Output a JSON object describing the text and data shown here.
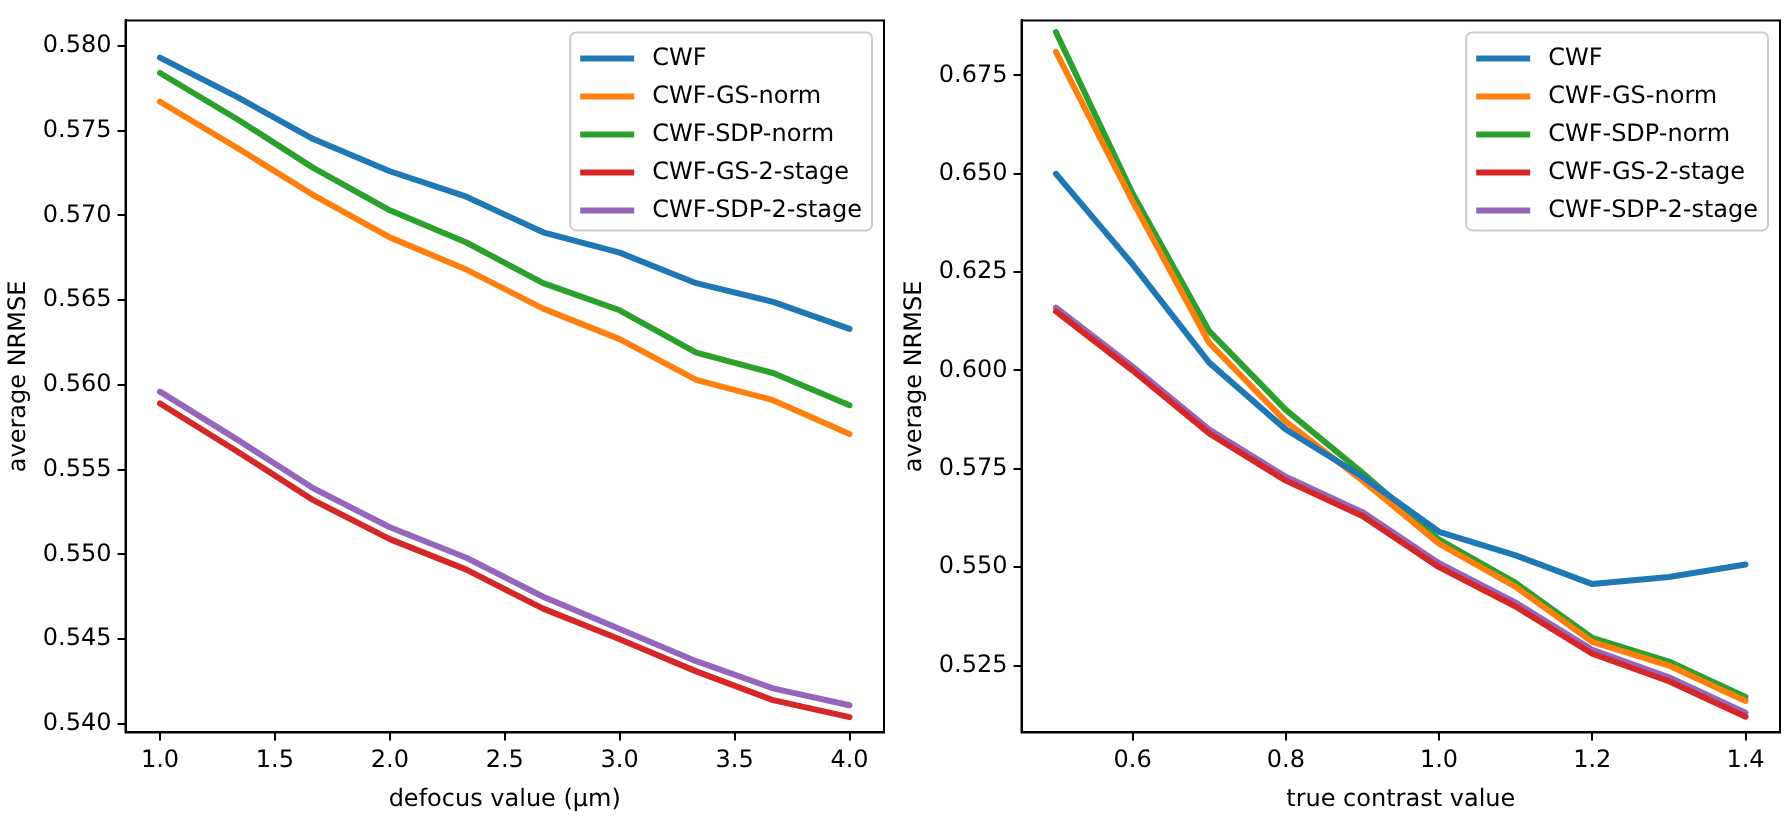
{
  "chart_data": [
    {
      "type": "line",
      "xlabel": "defocus value (μm)",
      "ylabel": "average NRMSE",
      "x": [
        1.0,
        1.333,
        1.667,
        2.0,
        2.333,
        2.667,
        3.0,
        3.333,
        3.667,
        4.0
      ],
      "series": [
        {
          "name": "CWF",
          "color": "#1f77b4",
          "values": [
            0.5793,
            0.577,
            0.5745,
            0.5726,
            0.5711,
            0.569,
            0.5678,
            0.566,
            0.5649,
            0.5633
          ]
        },
        {
          "name": "CWF-GS-norm",
          "color": "#ff7f0e",
          "values": [
            0.5767,
            0.574,
            0.5712,
            0.5687,
            0.5668,
            0.5645,
            0.5627,
            0.5603,
            0.5591,
            0.5571
          ]
        },
        {
          "name": "CWF-SDP-norm",
          "color": "#2ca02c",
          "values": [
            0.5784,
            0.5757,
            0.5728,
            0.5703,
            0.5684,
            0.566,
            0.5644,
            0.5619,
            0.5607,
            0.5588
          ]
        },
        {
          "name": "CWF-GS-2-stage",
          "color": "#d62728",
          "values": [
            0.5589,
            0.5561,
            0.5532,
            0.5509,
            0.5491,
            0.5468,
            0.545,
            0.5431,
            0.5414,
            0.5404
          ]
        },
        {
          "name": "CWF-SDP-2-stage",
          "color": "#9467bd",
          "values": [
            0.5596,
            0.5568,
            0.5539,
            0.5516,
            0.5498,
            0.5475,
            0.5456,
            0.5437,
            0.5421,
            0.5411
          ]
        }
      ],
      "xlim": [
        0.85,
        4.15
      ],
      "xticks": [
        {
          "value": 1,
          "label": "1.0"
        },
        1.5,
        {
          "value": 2,
          "label": "2.0"
        },
        2.5,
        {
          "value": 3,
          "label": "3.0"
        },
        3.5,
        {
          "value": 4,
          "label": "4.0"
        }
      ],
      "ylim": [
        0.5395,
        0.5815
      ],
      "yticks": [
        {
          "value": 0.54,
          "label": "0.540"
        },
        0.545,
        {
          "value": 0.55,
          "label": "0.550"
        },
        0.555,
        {
          "value": 0.56,
          "label": "0.560"
        },
        0.565,
        {
          "value": 0.57,
          "label": "0.570"
        },
        0.575,
        {
          "value": 0.58,
          "label": "0.580"
        }
      ],
      "grid": false,
      "legend": "top right",
      "marker": "none",
      "line_style": "solid"
    },
    {
      "type": "line",
      "xlabel": "true contrast value",
      "ylabel": "average NRMSE",
      "x": [
        0.5,
        0.6,
        0.7,
        0.8,
        0.9,
        1.0,
        1.1,
        1.2,
        1.3,
        1.4
      ],
      "series": [
        {
          "name": "CWF",
          "color": "#1f77b4",
          "values": [
            0.65,
            0.627,
            0.602,
            0.585,
            0.573,
            0.559,
            0.553,
            0.5457,
            0.5475,
            0.5507
          ]
        },
        {
          "name": "CWF-GS-norm",
          "color": "#ff7f0e",
          "values": [
            0.681,
            0.643,
            0.607,
            0.587,
            0.572,
            0.556,
            0.545,
            0.531,
            0.525,
            0.516
          ]
        },
        {
          "name": "CWF-SDP-norm",
          "color": "#2ca02c",
          "values": [
            0.686,
            0.645,
            0.61,
            0.59,
            0.574,
            0.557,
            0.546,
            0.532,
            0.526,
            0.517
          ]
        },
        {
          "name": "CWF-GS-2-stage",
          "color": "#d62728",
          "values": [
            0.615,
            0.6,
            0.584,
            0.572,
            0.563,
            0.55,
            0.54,
            0.528,
            0.521,
            0.512
          ]
        },
        {
          "name": "CWF-SDP-2-stage",
          "color": "#9467bd",
          "values": [
            0.616,
            0.601,
            0.585,
            0.573,
            0.564,
            0.551,
            0.541,
            0.529,
            0.522,
            0.513
          ]
        }
      ],
      "xlim": [
        0.455,
        1.445
      ],
      "xticks": [
        0.6,
        0.8,
        {
          "value": 1,
          "label": "1.0"
        },
        1.2,
        1.4
      ],
      "ylim": [
        0.508,
        0.689
      ],
      "yticks": [
        0.525,
        {
          "value": 0.55,
          "label": "0.550"
        },
        0.575,
        {
          "value": 0.6,
          "label": "0.600"
        },
        0.625,
        {
          "value": 0.65,
          "label": "0.650"
        },
        0.675
      ],
      "grid": false,
      "legend": "top right",
      "marker": "none",
      "line_style": "solid"
    }
  ]
}
